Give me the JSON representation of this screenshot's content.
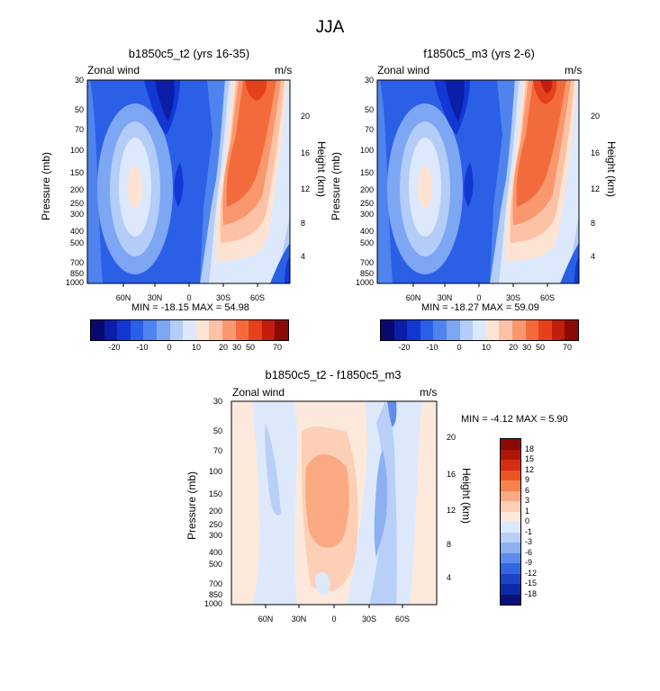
{
  "figure": {
    "title": "JJA",
    "panels": [
      {
        "id": "p1",
        "title": "b1850c5_t2 (yrs 16-35)",
        "left_label": "Zonal wind",
        "right_label": "m/s",
        "stats": "MIN = -18.15  MAX =  54.98"
      },
      {
        "id": "p2",
        "title": "f1850c5_m3 (yrs 2-6)",
        "left_label": "Zonal wind",
        "right_label": "m/s",
        "stats": "MIN = -18.27  MAX =  59.09"
      },
      {
        "id": "p3",
        "title": "b1850c5_t2 - f1850c5_m3",
        "left_label": "Zonal wind",
        "right_label": "m/s",
        "stats": "MIN =  -4.12  MAX =   5.90"
      }
    ]
  },
  "chart_data": [
    {
      "type": "contour",
      "title": "b1850c5_t2 (yrs 16-35)",
      "variable": "Zonal wind",
      "units": "m/s",
      "xlabel": "",
      "ylabel": "Pressure (mb)",
      "y2label": "Height (km)",
      "x_ticks": [
        "60N",
        "30N",
        "0",
        "30S",
        "60S"
      ],
      "y_ticks": [
        "30",
        "50",
        "70",
        "100",
        "150",
        "200",
        "250",
        "300",
        "400",
        "500",
        "700",
        "850",
        "1000"
      ],
      "y2_ticks": [
        "20",
        "16",
        "12",
        "8",
        "4"
      ],
      "min": -18.15,
      "max": 54.98,
      "colorbar": {
        "labels": [
          "-20",
          "-10",
          "0",
          "10",
          "20",
          "30",
          "50",
          "70"
        ]
      }
    },
    {
      "type": "contour",
      "title": "f1850c5_m3 (yrs 2-6)",
      "variable": "Zonal wind",
      "units": "m/s",
      "xlabel": "",
      "ylabel": "Pressure (mb)",
      "y2label": "Height (km)",
      "x_ticks": [
        "60N",
        "30N",
        "0",
        "30S",
        "60S"
      ],
      "y_ticks": [
        "30",
        "50",
        "70",
        "100",
        "150",
        "200",
        "250",
        "300",
        "400",
        "500",
        "700",
        "850",
        "1000"
      ],
      "y2_ticks": [
        "20",
        "16",
        "12",
        "8",
        "4"
      ],
      "min": -18.27,
      "max": 59.09,
      "colorbar": {
        "labels": [
          "-20",
          "-10",
          "0",
          "10",
          "20",
          "30",
          "50",
          "70"
        ]
      }
    },
    {
      "type": "contour",
      "title": "b1850c5_t2 - f1850c5_m3",
      "variable": "Zonal wind",
      "units": "m/s",
      "xlabel": "",
      "ylabel": "Pressure (mb)",
      "y2label": "Height (km)",
      "x_ticks": [
        "60N",
        "30N",
        "0",
        "30S",
        "60S"
      ],
      "y_ticks": [
        "30",
        "50",
        "70",
        "100",
        "150",
        "200",
        "250",
        "300",
        "400",
        "500",
        "700",
        "850",
        "1000"
      ],
      "y2_ticks": [
        "20",
        "16",
        "12",
        "8",
        "4"
      ],
      "min": -4.12,
      "max": 5.9,
      "colorbar": {
        "labels": [
          "18",
          "15",
          "12",
          "9",
          "6",
          "3",
          "1",
          "0",
          "-1",
          "-3",
          "-6",
          "-9",
          "-12",
          "-15",
          "-18"
        ]
      }
    }
  ],
  "colors": {
    "main_scale": [
      "#08086e",
      "#0a1ea8",
      "#1237d2",
      "#2a5fe6",
      "#4f84ef",
      "#7da6f3",
      "#b3ccf8",
      "#dce8fb",
      "#fde3d4",
      "#fcc2a6",
      "#f9976e",
      "#f36b3d",
      "#e5411b",
      "#c11e0b",
      "#8a0b05"
    ],
    "diff_scale": [
      "#8a0b05",
      "#b0170a",
      "#d42d12",
      "#ed5424",
      "#f6834f",
      "#faa982",
      "#fccfb6",
      "#fde8dc",
      "#dde9fb",
      "#b8cff8",
      "#8cb0f2",
      "#5e8cec",
      "#3366e0",
      "#1a46c6",
      "#0d2aa8",
      "#08107a"
    ]
  }
}
